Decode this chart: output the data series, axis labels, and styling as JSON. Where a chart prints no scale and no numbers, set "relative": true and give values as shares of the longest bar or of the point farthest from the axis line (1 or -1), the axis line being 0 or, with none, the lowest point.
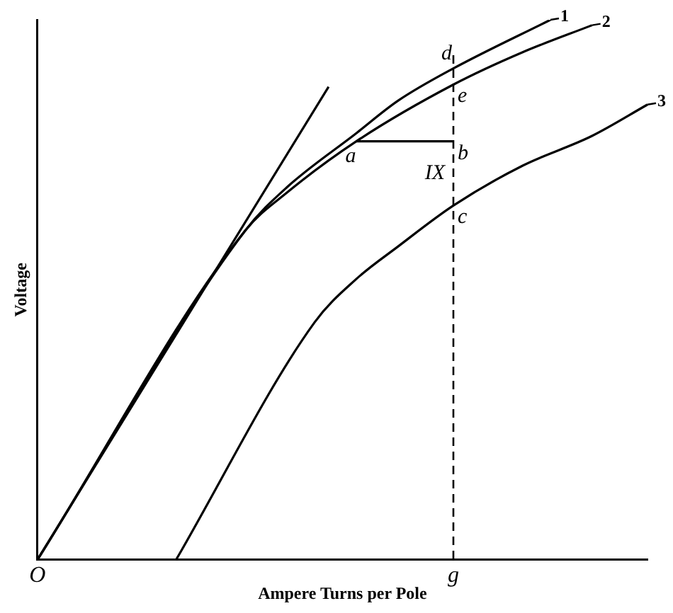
{
  "chart_data": {
    "type": "line",
    "relative": true,
    "xlabel": "Ampere Turns per Pole",
    "ylabel": "Voltage",
    "categories": [
      "O",
      null,
      null,
      null,
      null,
      null,
      null,
      null,
      null,
      null,
      null,
      null,
      null,
      null,
      null,
      null,
      null,
      null,
      null,
      null,
      null,
      null,
      null,
      null,
      null,
      null,
      null,
      null,
      null,
      null,
      "g",
      null,
      null,
      null,
      null,
      null,
      null,
      null,
      null,
      null,
      null,
      null,
      null,
      null,
      null
    ],
    "series": [
      {
        "name": "1",
        "color": "#000000",
        "values": [
          0,
          null,
          null,
          null,
          null,
          null,
          null,
          null,
          null,
          null,
          null,
          null,
          null,
          null,
          null,
          0.61,
          null,
          null,
          0.69,
          null,
          null,
          null,
          null,
          0.79,
          null,
          null,
          0.85,
          null,
          null,
          null,
          0.91,
          null,
          null,
          null,
          null,
          null,
          null,
          1,
          null,
          null,
          null,
          null,
          null,
          null,
          null
        ]
      },
      {
        "name": "2",
        "color": "#000000",
        "values": [
          0,
          null,
          null,
          null,
          null,
          null,
          null,
          null,
          null,
          null,
          null,
          null,
          null,
          null,
          null,
          0.61,
          null,
          null,
          0.68,
          null,
          null,
          null,
          null,
          0.775,
          null,
          null,
          null,
          null,
          null,
          null,
          0.88,
          null,
          null,
          null,
          null,
          0.94,
          null,
          null,
          null,
          null,
          0.99,
          null,
          null,
          null,
          null
        ]
      },
      {
        "name": "3",
        "color": "#000000",
        "values": [
          null,
          null,
          null,
          null,
          null,
          null,
          null,
          null,
          null,
          null,
          0,
          null,
          null,
          null,
          null,
          null,
          null,
          null,
          null,
          null,
          0.44,
          null,
          null,
          0.52,
          null,
          null,
          0.58,
          null,
          null,
          null,
          0.656,
          null,
          null,
          null,
          null,
          0.73,
          null,
          null,
          null,
          null,
          0.785,
          null,
          null,
          null,
          0.843
        ]
      },
      {
        "color": "#000000",
        "values": [
          0,
          null,
          null,
          null,
          null,
          null,
          null,
          null,
          null,
          null,
          null,
          null,
          null,
          null,
          null,
          null,
          null,
          null,
          null,
          null,
          null,
          0.876,
          null,
          null,
          null,
          null,
          null,
          null,
          null,
          null,
          null,
          null,
          null,
          null,
          null,
          null,
          null,
          null,
          null,
          null,
          null,
          null,
          null,
          null,
          null
        ]
      },
      {
        "color": "#000000",
        "values": [
          null,
          null,
          null,
          null,
          null,
          null,
          null,
          null,
          null,
          null,
          null,
          null,
          null,
          null,
          null,
          null,
          null,
          null,
          null,
          null,
          null,
          null,
          null,
          0.775,
          null,
          null,
          null,
          null,
          null,
          null,
          0.775,
          null,
          null,
          null,
          null,
          null,
          null,
          null,
          null,
          null,
          null,
          null,
          null,
          null,
          null
        ]
      }
    ],
    "ref_lines": [
      {
        "axis": "x",
        "value": "g",
        "color": "#000000",
        "line_style": "dashed"
      }
    ],
    "annotations": [
      {
        "text": "d",
        "x": "g",
        "y": 0.91
      },
      {
        "text": "e",
        "x": "g",
        "y": 0.88
      },
      {
        "text": "b",
        "x": "g",
        "y": 0.775
      },
      {
        "text": "IX",
        "x": "g",
        "y": 0.715
      },
      {
        "text": "c",
        "x": "g",
        "y": 0.656
      },
      {
        "text": "a",
        "y": 0.775
      }
    ],
    "legend": "top right",
    "grid": false,
    "marker": "none",
    "line_style": "solid"
  }
}
